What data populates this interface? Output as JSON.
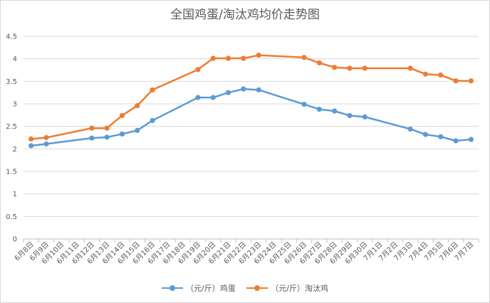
{
  "chart_data": {
    "type": "line",
    "title": "全国鸡蛋/淘汰鸡均价走势图",
    "xlabel": "",
    "ylabel": "",
    "ylim": [
      0,
      4.5
    ],
    "yticks": [
      "0",
      "0.5",
      "1",
      "1.5",
      "2",
      "2.5",
      "3",
      "3.5",
      "4",
      "4.5"
    ],
    "categories": [
      "6月8日",
      "6月9日",
      "6月10日",
      "6月11日",
      "6月12日",
      "6月13日",
      "6月14日",
      "6月15日",
      "6月16日",
      "6月17日",
      "6月18日",
      "6月19日",
      "6月20日",
      "6月21日",
      "6月22日",
      "6月23日",
      "6月24日",
      "6月25日",
      "6月26日",
      "6月27日",
      "6月28日",
      "6月29日",
      "6月30日",
      "7月1日",
      "7月2日",
      "7月3日",
      "7月4日",
      "7月5日",
      "7月6日",
      "7月7日"
    ],
    "grid": true,
    "legend_position": "bottom",
    "series": [
      {
        "name": "（元/斤）鸡蛋",
        "color": "#5b9bd5",
        "values": [
          2.07,
          2.11,
          null,
          null,
          2.24,
          2.26,
          2.33,
          2.41,
          2.63,
          null,
          null,
          3.14,
          3.14,
          3.25,
          3.33,
          3.31,
          null,
          null,
          2.99,
          2.88,
          2.84,
          2.74,
          2.71,
          null,
          null,
          2.44,
          2.32,
          2.27,
          2.18,
          2.21
        ]
      },
      {
        "name": "（元/斤）淘汰鸡",
        "color": "#ed7d31",
        "values": [
          2.22,
          2.25,
          null,
          null,
          2.46,
          2.46,
          2.74,
          2.96,
          3.31,
          null,
          null,
          3.76,
          4.01,
          4.01,
          4.01,
          4.08,
          null,
          null,
          4.03,
          3.91,
          3.81,
          3.79,
          3.79,
          null,
          null,
          3.79,
          3.66,
          3.64,
          3.51,
          3.51
        ]
      }
    ]
  }
}
